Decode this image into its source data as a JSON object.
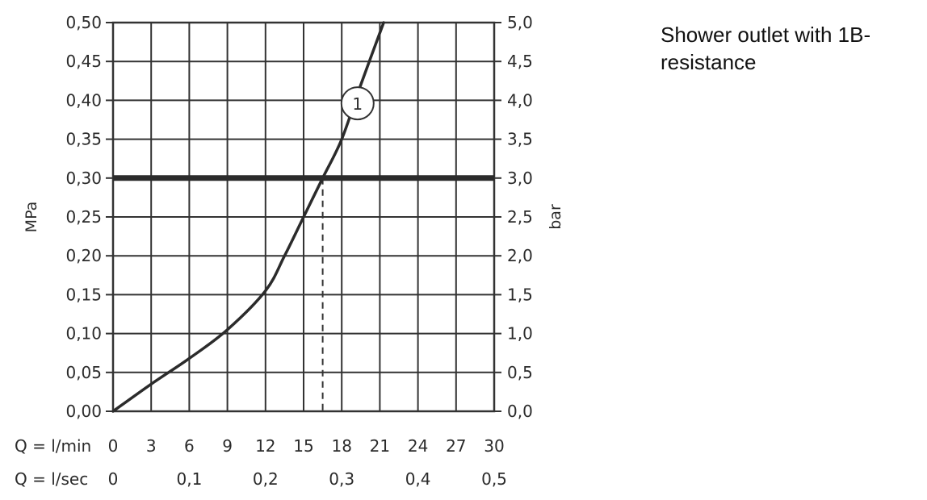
{
  "note": "Shower outlet with 1B-resistance",
  "chart_data": {
    "type": "line",
    "xlabel_rows": [
      "Q = l/min",
      "Q = l/sec"
    ],
    "x_ticks_lmin": [
      "0",
      "3",
      "6",
      "9",
      "12",
      "15",
      "18",
      "21",
      "24",
      "27",
      "30"
    ],
    "x_ticks_lsec": [
      "0",
      "0,1",
      "0,2",
      "0,3",
      "0,4",
      "0,5"
    ],
    "xlim": [
      0,
      30
    ],
    "ylim": [
      0,
      0.5
    ],
    "y_left_label": "MPa",
    "y_right_label": "bar",
    "y_ticks_left": [
      "0,00",
      "0,05",
      "0,10",
      "0,15",
      "0,20",
      "0,25",
      "0,30",
      "0,35",
      "0,40",
      "0,45",
      "0,50"
    ],
    "y_ticks_right": [
      "0,0",
      "0,5",
      "1,0",
      "1,5",
      "2,0",
      "2,5",
      "3,0",
      "3,5",
      "4,0",
      "4,5",
      "5,0"
    ],
    "grid": true,
    "series": [
      {
        "name": "1",
        "x": [
          0,
          3,
          6,
          9,
          12,
          13.5,
          15,
          16.5,
          18,
          19.5,
          21.3
        ],
        "y": [
          0,
          0.035,
          0.068,
          0.105,
          0.155,
          0.2,
          0.25,
          0.3,
          0.35,
          0.42,
          0.5
        ],
        "color": "#2b2b2b"
      }
    ],
    "reference_line": {
      "y": 0.3,
      "color": "#2b2b2b"
    },
    "operating_point": {
      "x": 16.5,
      "y": 0.3
    }
  }
}
